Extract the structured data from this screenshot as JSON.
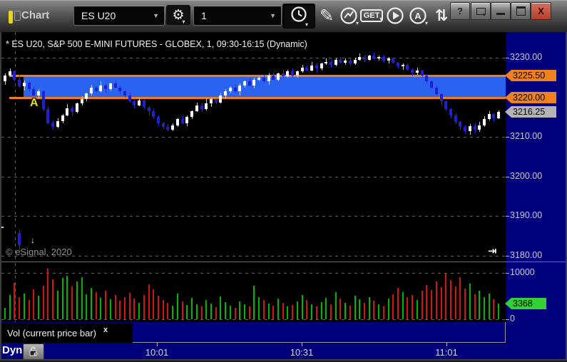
{
  "window": {
    "title": "Chart",
    "controls": {
      "help": "?",
      "minimize": "",
      "maximize": "",
      "dock": "",
      "close": "X"
    }
  },
  "toolbar": {
    "symbol_value": "ES U20",
    "interval_value": "1",
    "get_label": "GET"
  },
  "icons": {
    "gear": "⚙",
    "pencil": "✎",
    "swap": "⇅",
    "caret": "▼",
    "subcaret": "▾",
    "down_arrow": "↓",
    "jump_to_latest": "⇥",
    "vol_close": "x"
  },
  "chart": {
    "title": "* ES U20, S&P 500 E-MINI FUTURES - GLOBEX, 1, 09:30-16:15 (Dynamic)",
    "watermark": "© eSignal, 2020",
    "marker_a": "A"
  },
  "volume_pane": {
    "indicator_label": "Vol (current price bar)"
  },
  "time_axis": {
    "dyn_label": "Dyn",
    "labels": [
      "10:01",
      "10:31",
      "11:01"
    ]
  },
  "price_axis": {
    "ticks": [
      {
        "value": 3230.0,
        "label": "3230.00"
      },
      {
        "value": 3210.0,
        "label": "3210.00"
      },
      {
        "value": 3200.0,
        "label": "3200.00"
      },
      {
        "value": 3190.0,
        "label": "3190.00"
      },
      {
        "value": 3180.0,
        "label": "3180.00"
      }
    ],
    "badges": [
      {
        "value": 3225.5,
        "label": "3225.50",
        "type": "orange"
      },
      {
        "value": 3220.0,
        "label": "3220.00",
        "type": "orange"
      },
      {
        "value": 3216.25,
        "label": "3216.25",
        "type": "gray"
      }
    ]
  },
  "volume_axis": {
    "ticks": [
      {
        "value": 10000,
        "label": "10000"
      },
      {
        "value": 0,
        "label": "0"
      }
    ],
    "badge": {
      "value": 3368,
      "label": "3368",
      "type": "green"
    }
  },
  "colors": {
    "axis_bg": "#00007D",
    "zone_blue": "#2A63F0",
    "line_orange": "#F07D17",
    "up_candle": "#FFFFFF",
    "up_wick": "#CFCFCF",
    "down_candle": "#1F1FD6",
    "down_wick": "#2D2DE8",
    "vol_up": "#00B800",
    "vol_down": "#D21414",
    "badge_orange": "#F0821E",
    "badge_gray": "#B4B4B4",
    "badge_green": "#33D133",
    "marker_yellow": "#DCE22D"
  },
  "chart_data": {
    "type": "candlestick",
    "symbol": "ES U20",
    "interval_minutes": 1,
    "session": "09:30-16:15",
    "zone": {
      "top": 3225.5,
      "bottom": 3220.0
    },
    "last_price": 3216.25,
    "last_volume": 3368,
    "price_gridlines": [
      3230,
      3210,
      3200,
      3190,
      3180
    ],
    "volume_gridlines": [
      10000,
      0
    ],
    "ylim": [
      3178,
      3232
    ],
    "volume_ylim": [
      0,
      12000
    ],
    "candles": [
      [
        3224.0,
        3226.0,
        3223.25,
        3225.5
      ],
      [
        3225.5,
        3227.25,
        3225.25,
        3226.5
      ],
      [
        3226.5,
        3226.75,
        3224.0,
        3224.5
      ],
      [
        3224.5,
        3225.5,
        3222.5,
        3222.75
      ],
      [
        3222.75,
        3224.25,
        3221.75,
        3223.75
      ],
      [
        3223.75,
        3224.0,
        3221.5,
        3222.0
      ],
      [
        3222.0,
        3222.75,
        3220.25,
        3220.5
      ],
      [
        3220.5,
        3222.0,
        3219.75,
        3221.5
      ],
      [
        3221.5,
        3221.75,
        3216.5,
        3217.0
      ],
      [
        3217.0,
        3217.75,
        3213.25,
        3213.5
      ],
      [
        3213.5,
        3214.0,
        3211.75,
        3212.5
      ],
      [
        3212.5,
        3214.75,
        3212.25,
        3214.0
      ],
      [
        3214.0,
        3215.75,
        3213.5,
        3215.5
      ],
      [
        3215.5,
        3218.25,
        3215.25,
        3217.25
      ],
      [
        3217.25,
        3217.75,
        3215.25,
        3216.25
      ],
      [
        3216.25,
        3218.75,
        3216.0,
        3218.5
      ],
      [
        3218.5,
        3220.25,
        3218.0,
        3219.5
      ],
      [
        3219.5,
        3221.25,
        3219.0,
        3221.0
      ],
      [
        3221.0,
        3223.25,
        3220.5,
        3222.5
      ],
      [
        3222.5,
        3222.75,
        3221.25,
        3221.5
      ],
      [
        3221.5,
        3224.0,
        3221.25,
        3223.0
      ],
      [
        3223.0,
        3223.5,
        3221.0,
        3222.0
      ],
      [
        3222.0,
        3223.75,
        3221.5,
        3223.5
      ],
      [
        3223.5,
        3224.25,
        3222.25,
        3222.5
      ],
      [
        3222.5,
        3223.0,
        3220.75,
        3221.5
      ],
      [
        3221.5,
        3221.75,
        3220.0,
        3220.5
      ],
      [
        3220.5,
        3221.25,
        3218.75,
        3219.0
      ],
      [
        3219.0,
        3219.5,
        3217.25,
        3218.0
      ],
      [
        3218.0,
        3220.0,
        3217.75,
        3219.25
      ],
      [
        3219.25,
        3219.5,
        3217.0,
        3217.5
      ],
      [
        3217.5,
        3217.75,
        3215.5,
        3216.5
      ],
      [
        3216.5,
        3217.25,
        3214.5,
        3215.0
      ],
      [
        3215.0,
        3215.5,
        3212.75,
        3213.5
      ],
      [
        3213.5,
        3213.75,
        3212.0,
        3212.5
      ],
      [
        3212.5,
        3213.25,
        3211.5,
        3211.75
      ],
      [
        3211.75,
        3213.5,
        3211.5,
        3213.0
      ],
      [
        3213.0,
        3214.75,
        3212.5,
        3214.5
      ],
      [
        3214.5,
        3215.25,
        3213.25,
        3213.5
      ],
      [
        3213.5,
        3215.5,
        3212.75,
        3215.0
      ],
      [
        3215.0,
        3216.75,
        3214.5,
        3216.5
      ],
      [
        3216.5,
        3218.75,
        3216.25,
        3218.0
      ],
      [
        3218.0,
        3218.5,
        3216.25,
        3217.0
      ],
      [
        3217.0,
        3219.5,
        3216.75,
        3218.5
      ],
      [
        3218.5,
        3220.0,
        3217.5,
        3219.5
      ],
      [
        3219.5,
        3219.75,
        3218.25,
        3218.75
      ],
      [
        3218.75,
        3221.25,
        3218.5,
        3220.5
      ],
      [
        3220.5,
        3222.0,
        3219.75,
        3221.5
      ],
      [
        3221.5,
        3222.75,
        3221.0,
        3222.5
      ],
      [
        3222.5,
        3223.25,
        3221.25,
        3221.5
      ],
      [
        3221.5,
        3223.5,
        3220.5,
        3223.0
      ],
      [
        3223.0,
        3224.25,
        3222.5,
        3224.0
      ],
      [
        3224.0,
        3224.75,
        3222.75,
        3223.0
      ],
      [
        3223.0,
        3225.0,
        3222.25,
        3224.5
      ],
      [
        3224.5,
        3225.25,
        3224.0,
        3225.0
      ],
      [
        3225.0,
        3225.75,
        3223.75,
        3224.0
      ],
      [
        3224.0,
        3226.0,
        3223.25,
        3225.5
      ],
      [
        3225.5,
        3226.25,
        3224.25,
        3224.5
      ],
      [
        3224.5,
        3226.25,
        3224.0,
        3226.0
      ],
      [
        3226.0,
        3227.0,
        3224.75,
        3225.25
      ],
      [
        3225.25,
        3227.0,
        3225.0,
        3226.5
      ],
      [
        3226.5,
        3227.25,
        3224.75,
        3225.5
      ],
      [
        3225.5,
        3226.75,
        3225.0,
        3226.5
      ],
      [
        3226.5,
        3228.25,
        3226.25,
        3227.5
      ],
      [
        3227.5,
        3228.0,
        3226.5,
        3226.75
      ],
      [
        3226.75,
        3229.0,
        3226.5,
        3228.0
      ],
      [
        3228.0,
        3228.5,
        3226.25,
        3227.25
      ],
      [
        3227.25,
        3228.75,
        3226.75,
        3228.5
      ],
      [
        3228.5,
        3229.75,
        3228.25,
        3229.0
      ],
      [
        3229.0,
        3229.5,
        3227.5,
        3228.25
      ],
      [
        3228.25,
        3229.75,
        3227.75,
        3229.5
      ],
      [
        3229.5,
        3230.25,
        3228.5,
        3228.75
      ],
      [
        3228.75,
        3229.75,
        3228.25,
        3229.25
      ],
      [
        3229.25,
        3229.75,
        3228.0,
        3228.5
      ],
      [
        3228.5,
        3230.0,
        3228.25,
        3229.5
      ],
      [
        3229.5,
        3231.0,
        3229.25,
        3230.25
      ],
      [
        3230.25,
        3230.5,
        3229.0,
        3229.5
      ],
      [
        3229.5,
        3230.75,
        3229.25,
        3230.5
      ],
      [
        3230.5,
        3231.25,
        3229.5,
        3229.75
      ],
      [
        3229.75,
        3230.5,
        3229.25,
        3230.25
      ],
      [
        3230.25,
        3230.5,
        3229.0,
        3229.25
      ],
      [
        3229.25,
        3230.25,
        3228.5,
        3229.75
      ],
      [
        3229.75,
        3230.0,
        3228.5,
        3228.75
      ],
      [
        3228.75,
        3229.0,
        3227.25,
        3227.75
      ],
      [
        3227.75,
        3228.5,
        3227.0,
        3228.25
      ],
      [
        3228.25,
        3228.5,
        3226.75,
        3227.0
      ],
      [
        3227.0,
        3227.25,
        3225.25,
        3226.25
      ],
      [
        3226.25,
        3227.5,
        3225.75,
        3226.75
      ],
      [
        3226.75,
        3227.0,
        3225.0,
        3225.5
      ],
      [
        3225.5,
        3225.75,
        3223.5,
        3224.0
      ],
      [
        3224.0,
        3224.25,
        3222.0,
        3222.5
      ],
      [
        3222.5,
        3223.0,
        3220.5,
        3220.75
      ],
      [
        3220.75,
        3221.0,
        3218.0,
        3219.0
      ],
      [
        3219.0,
        3219.25,
        3216.5,
        3217.0
      ],
      [
        3217.0,
        3217.25,
        3214.75,
        3215.5
      ],
      [
        3215.5,
        3216.0,
        3213.25,
        3213.75
      ],
      [
        3213.75,
        3214.0,
        3211.75,
        3212.5
      ],
      [
        3212.5,
        3213.0,
        3210.75,
        3211.5
      ],
      [
        3211.5,
        3213.25,
        3210.5,
        3212.75
      ],
      [
        3212.75,
        3213.5,
        3211.0,
        3211.75
      ],
      [
        3211.75,
        3213.75,
        3211.25,
        3213.0
      ],
      [
        3213.0,
        3215.25,
        3212.5,
        3214.5
      ],
      [
        3214.5,
        3216.5,
        3214.25,
        3215.75
      ],
      [
        3215.75,
        3216.0,
        3213.75,
        3214.75
      ],
      [
        3214.75,
        3216.75,
        3214.5,
        3216.25
      ]
    ],
    "volumes": [
      2400,
      5200,
      7800,
      4700,
      5600,
      4100,
      6400,
      5100,
      7300,
      11000,
      8600,
      6200,
      8900,
      9400,
      7100,
      8200,
      9100,
      5400,
      6800,
      5900,
      4600,
      6100,
      4300,
      5200,
      4000,
      4800,
      5700,
      4400,
      3600,
      5300,
      7600,
      6400,
      5100,
      4200,
      3500,
      2900,
      5600,
      3800,
      3100,
      4600,
      3300,
      2700,
      4100,
      3400,
      2600,
      4900,
      3700,
      3000,
      2500,
      3900,
      3200,
      2800,
      7200,
      4800,
      4200,
      3400,
      2900,
      4400,
      3600,
      2700,
      3100,
      3900,
      5200,
      4100,
      3300,
      2800,
      3700,
      4600,
      3200,
      5800,
      4400,
      3600,
      3000,
      5100,
      4300,
      3500,
      4800,
      4000,
      3300,
      2800,
      4500,
      5400,
      6800,
      5900,
      4700,
      5300,
      4200,
      6100,
      7400,
      6300,
      8200,
      7000,
      9800,
      8400,
      7100,
      9100,
      6600,
      7700,
      5400,
      6200,
      4700,
      5600,
      4300,
      3368
    ]
  }
}
